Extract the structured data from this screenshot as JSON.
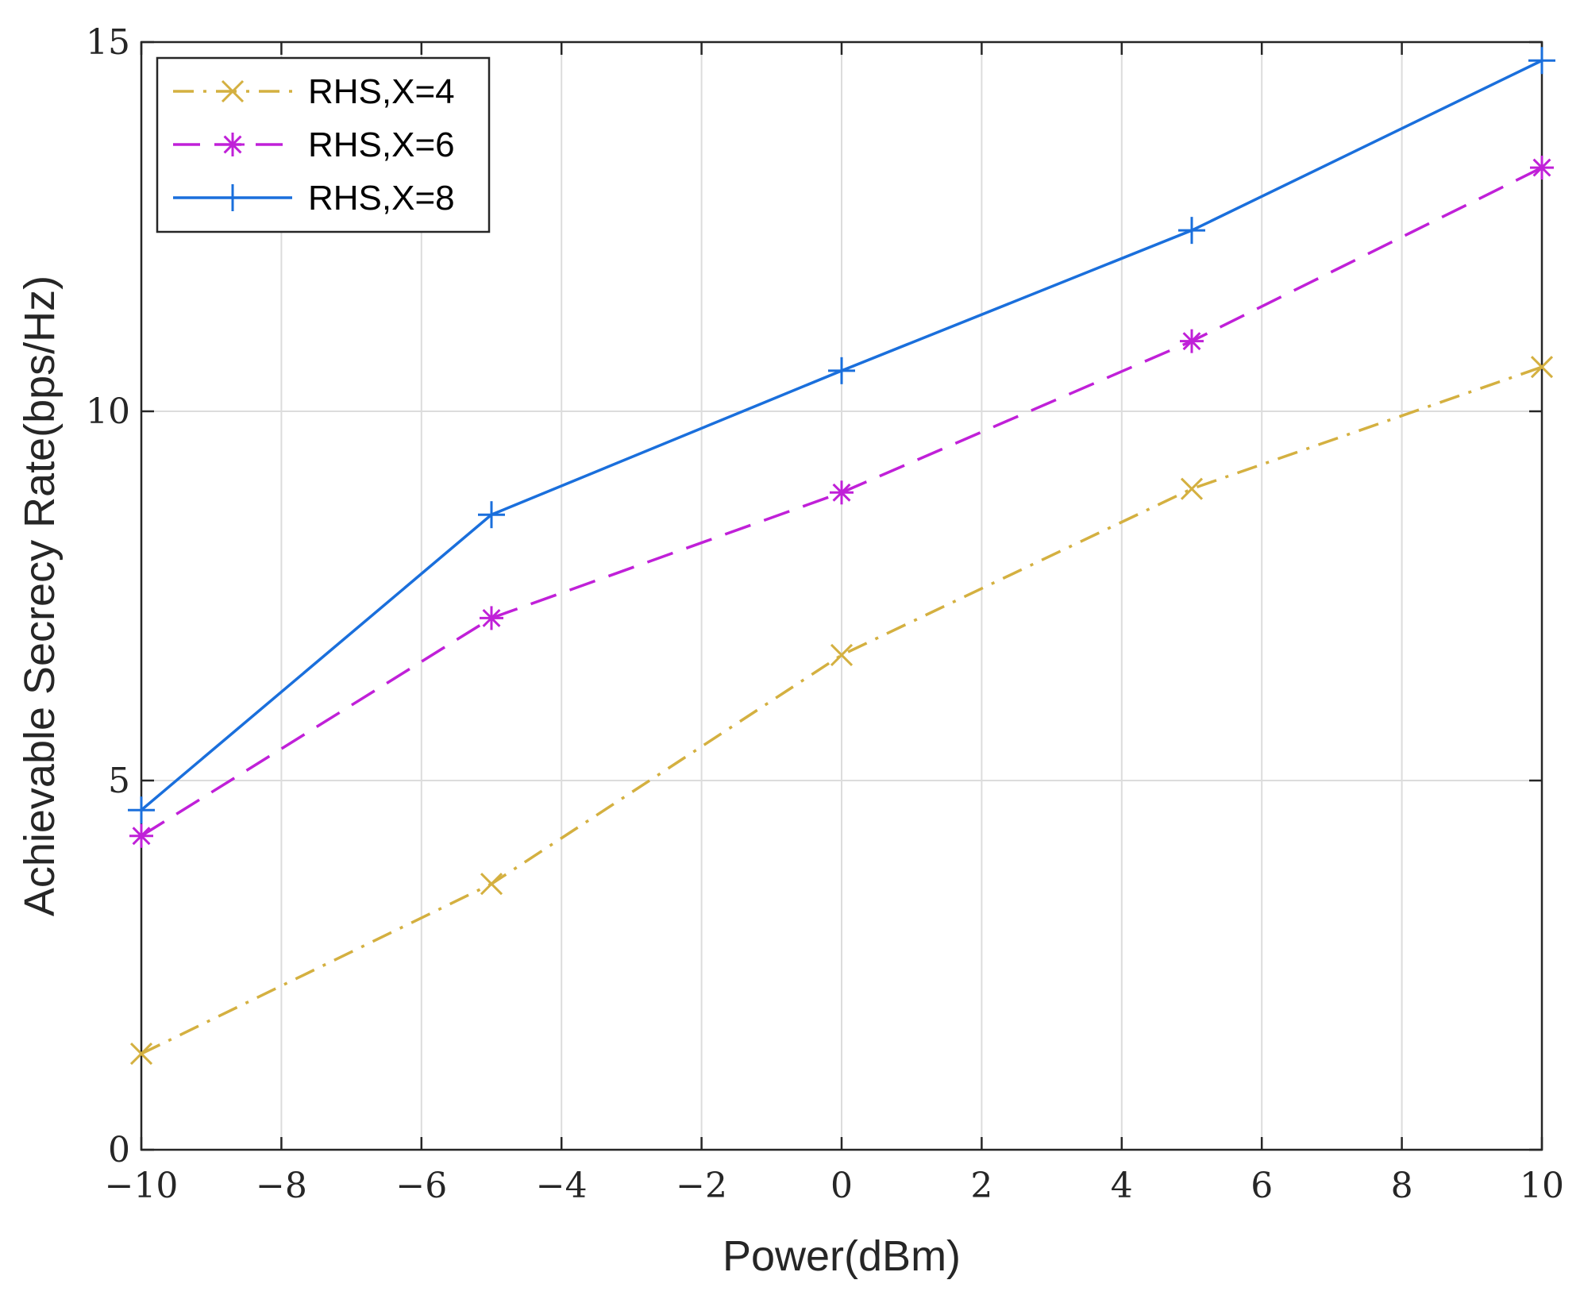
{
  "chart_data": {
    "type": "line",
    "title": "",
    "xlabel": "Power(dBm)",
    "ylabel": "Achievable Secrecy Rate(bps/Hz)",
    "xlim": [
      -10,
      10
    ],
    "ylim": [
      0,
      15
    ],
    "grid": true,
    "legend_position": "top-left",
    "x_ticks": [
      -10,
      -8,
      -6,
      -4,
      -2,
      0,
      2,
      4,
      6,
      8,
      10
    ],
    "x_tick_labels": [
      "−10",
      "−8",
      "−6",
      "−4",
      "−2",
      "0",
      "2",
      "4",
      "6",
      "8",
      "10"
    ],
    "y_ticks": [
      0,
      5,
      10,
      15
    ],
    "y_tick_labels": [
      "0",
      "5",
      "10",
      "15"
    ],
    "x": [
      -10,
      -5,
      0,
      5,
      10
    ],
    "series": [
      {
        "name": "RHS,X=4",
        "values": [
          1.3,
          3.6,
          6.7,
          8.95,
          10.6
        ],
        "color": "#d4b040",
        "dash": "dashdot",
        "marker": "x"
      },
      {
        "name": "RHS,X=6",
        "values": [
          4.25,
          7.2,
          8.9,
          10.95,
          13.3
        ],
        "color": "#c020d8",
        "dash": "dashed",
        "marker": "asterisk"
      },
      {
        "name": "RHS,X=8",
        "values": [
          4.6,
          8.6,
          10.55,
          12.45,
          14.75
        ],
        "color": "#1a6fdc",
        "dash": "solid",
        "marker": "plus"
      }
    ]
  }
}
